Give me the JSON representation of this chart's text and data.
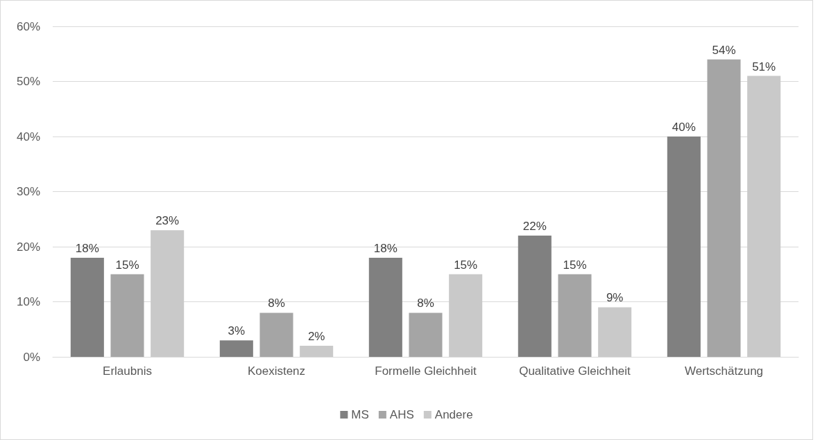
{
  "chart_data": {
    "type": "bar",
    "categories": [
      "Erlaubnis",
      "Koexistenz",
      "Formelle Gleichheit",
      "Qualitative Gleichheit",
      "Wertschätzung"
    ],
    "series": [
      {
        "name": "MS",
        "color": "#808080",
        "values": [
          18,
          3,
          18,
          22,
          40
        ],
        "value_labels": [
          "18%",
          "3%",
          "18%",
          "22%",
          "40%"
        ]
      },
      {
        "name": "AHS",
        "color": "#a5a5a5",
        "values": [
          15,
          8,
          8,
          15,
          54
        ],
        "value_labels": [
          "15%",
          "8%",
          "8%",
          "15%",
          "54%"
        ]
      },
      {
        "name": "Andere",
        "color": "#c9c9c9",
        "values": [
          23,
          2,
          15,
          9,
          51
        ],
        "value_labels": [
          "23%",
          "2%",
          "15%",
          "9%",
          "51%"
        ]
      }
    ],
    "ylim": [
      0,
      60
    ],
    "yticks": [
      {
        "value": 0,
        "label": "0%"
      },
      {
        "value": 10,
        "label": "10%"
      },
      {
        "value": 20,
        "label": "20%"
      },
      {
        "value": 30,
        "label": "30%"
      },
      {
        "value": 40,
        "label": "40%"
      },
      {
        "value": 50,
        "label": "50%"
      },
      {
        "value": 60,
        "label": "60%"
      }
    ],
    "grid": "y",
    "legend": "bottom"
  }
}
